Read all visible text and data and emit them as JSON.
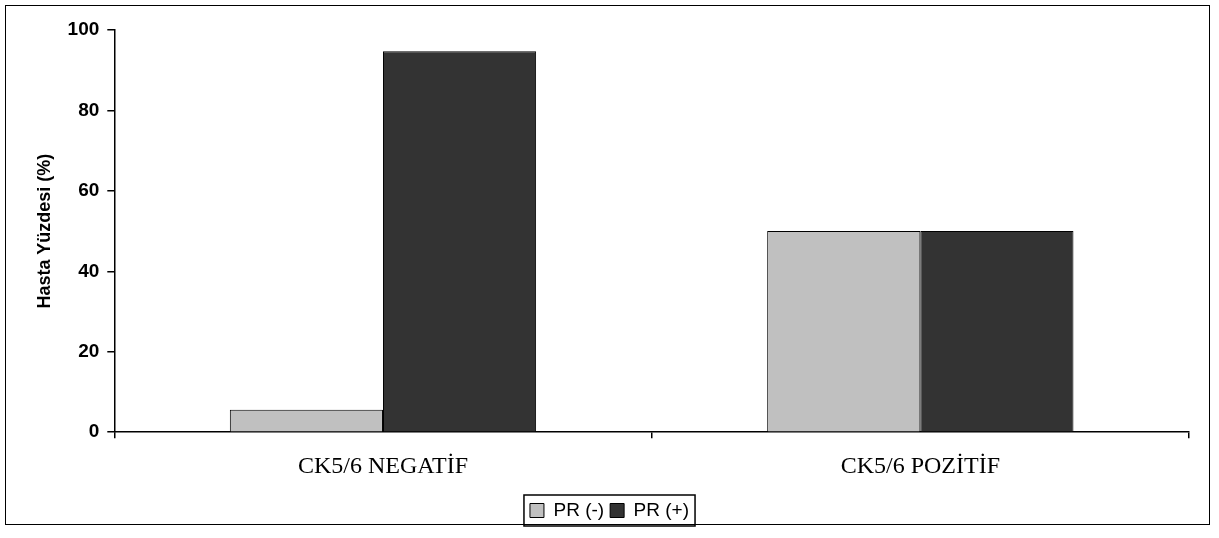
{
  "chart_data": {
    "type": "bar",
    "ylabel": "Hasta Yüzdesi (%)",
    "categories": [
      "CK5/6 NEGATİF",
      "CK5/6 POZİTİF"
    ],
    "series": [
      {
        "name": "PR (-)",
        "color": "#c0c0c0",
        "values": [
          5.6,
          50
        ]
      },
      {
        "name": "PR (+)",
        "color": "#333333",
        "values": [
          94.7,
          50
        ]
      }
    ],
    "ylim": [
      0,
      100
    ],
    "yticks": [
      0,
      20,
      40,
      60,
      80,
      100
    ],
    "grid": false,
    "legend": "bottom"
  }
}
